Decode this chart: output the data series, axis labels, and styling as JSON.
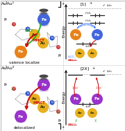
{
  "bg_color": "#ffffff",
  "fe_orange": "#e8821a",
  "fe_purple": "#9933cc",
  "fe_blue": "#4466dd",
  "au_gold": "#e8b020",
  "au_dark": "#c89010",
  "green": "#22aa22",
  "red": "#cc1111",
  "blue_arrow": "#5588ff",
  "lc": "#222222",
  "gray": "#888888",
  "n_blue": "#3355cc",
  "o_red": "#cc3333",
  "cp_gray": "#999988",
  "cp_dark": "#666655",
  "hat_dark": "#333333",
  "hat_mid": "#666666",
  "purple_cp": "#7755aa"
}
